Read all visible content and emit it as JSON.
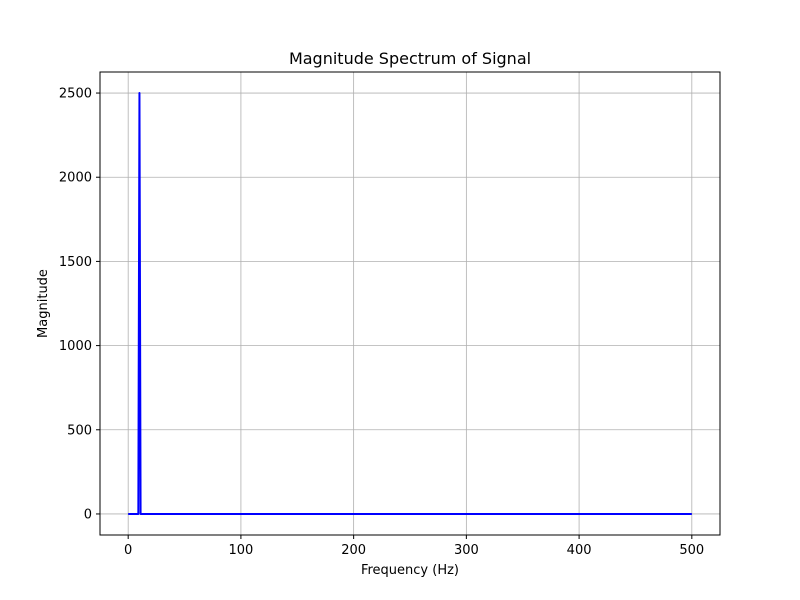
{
  "chart_data": {
    "type": "line",
    "title": "Magnitude Spectrum of Signal",
    "xlabel": "Frequency (Hz)",
    "ylabel": "Magnitude",
    "xlim": [
      -25,
      525
    ],
    "ylim": [
      -125,
      2625
    ],
    "xticks": [
      0,
      100,
      200,
      300,
      400,
      500
    ],
    "yticks": [
      0,
      500,
      1000,
      1500,
      2000,
      2500
    ],
    "grid": true,
    "series": [
      {
        "color": "#0000ff",
        "x": [
          0,
          9,
          10,
          11,
          500
        ],
        "y": [
          0,
          0,
          2500,
          0,
          0
        ]
      }
    ]
  }
}
